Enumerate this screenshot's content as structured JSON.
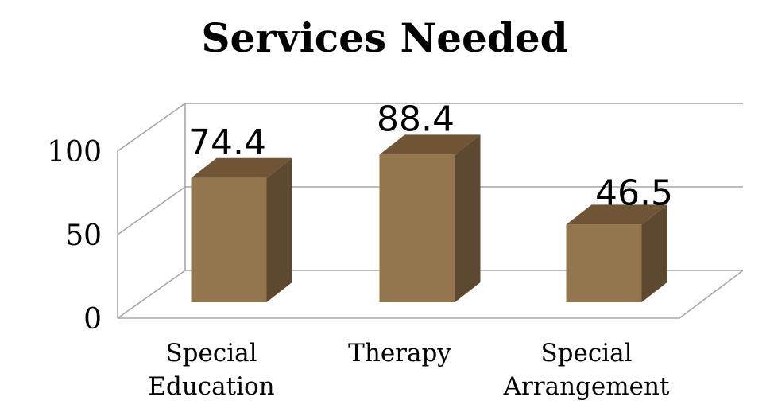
{
  "chart_data": {
    "type": "bar",
    "title": "Services Needed",
    "categories": [
      [
        "Special",
        "Education"
      ],
      [
        "Therapy"
      ],
      [
        "Special",
        "Arrangement"
      ]
    ],
    "values": [
      74.4,
      88.4,
      46.5
    ],
    "value_labels": [
      "74.4",
      "88.4",
      "46.5"
    ],
    "y_ticks": [
      "0",
      "50",
      "100"
    ],
    "ylim": [
      0,
      100
    ],
    "grid": true,
    "legend": false,
    "style": "3d",
    "colors": {
      "front": "#93764e",
      "top": "#6f5536",
      "side": "#5d4830"
    }
  }
}
